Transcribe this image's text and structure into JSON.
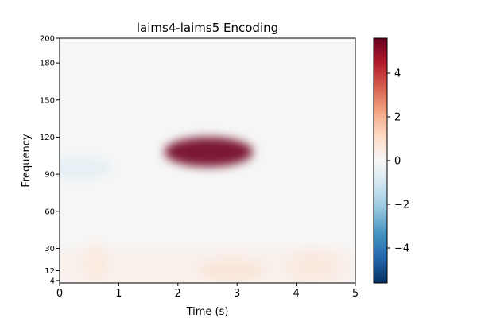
{
  "chart_data": {
    "type": "heatmap",
    "title": "laims4-laims5 Encoding",
    "xlabel": "Time (s)",
    "ylabel": "Frequency",
    "xlim": [
      0,
      5
    ],
    "ylim": [
      2,
      200
    ],
    "x_ticks": [
      0,
      1,
      2,
      3,
      4,
      5
    ],
    "x_tick_labels": [
      "0",
      "1",
      "2",
      "3",
      "4",
      "5"
    ],
    "y_ticks": [
      4,
      12,
      30,
      60,
      90,
      120,
      150,
      180,
      200
    ],
    "y_tick_labels": [
      "4",
      "12",
      "30",
      "60",
      "90",
      "120",
      "150",
      "180",
      "200"
    ],
    "colorbar": {
      "colormap": "RdBu_r",
      "vmin": -5.6,
      "vmax": 5.6,
      "ticks": [
        -4,
        -2,
        0,
        2,
        4
      ],
      "tick_labels": [
        "−4",
        "−2",
        "0",
        "2",
        "4"
      ],
      "colors": [
        "#053061",
        "#2166ac",
        "#4393c3",
        "#92c5de",
        "#d1e5f0",
        "#f7f7f7",
        "#fddbc7",
        "#f4a582",
        "#d6604d",
        "#b2182b",
        "#67001f"
      ]
    },
    "features": [
      {
        "time": 2.52,
        "freq": 108,
        "value": 5.5
      },
      {
        "time": 0.6,
        "freq": 15,
        "value": 0.8
      },
      {
        "time": 2.9,
        "freq": 12,
        "value": 1.0
      },
      {
        "time": 4.3,
        "freq": 15,
        "value": 0.6
      },
      {
        "time": 0.3,
        "freq": 95,
        "value": -0.5
      }
    ]
  }
}
